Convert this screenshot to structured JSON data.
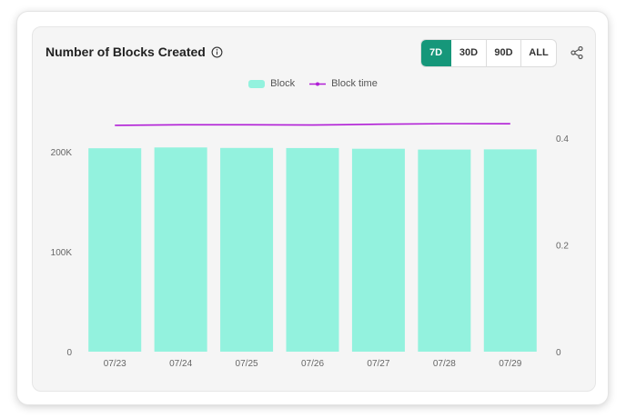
{
  "header": {
    "title": "Number of Blocks Created",
    "ranges": [
      {
        "label": "7D",
        "active": true
      },
      {
        "label": "30D",
        "active": false
      },
      {
        "label": "90D",
        "active": false
      },
      {
        "label": "ALL",
        "active": false
      }
    ]
  },
  "icons": {
    "info": "info-icon",
    "share": "share-icon"
  },
  "colors": {
    "bar": "#93f2de",
    "line": "#b11ed6",
    "active_button": "#16977a"
  },
  "chart_data": {
    "type": "bar",
    "categories": [
      "07/23",
      "07/24",
      "07/25",
      "07/26",
      "07/27",
      "07/28",
      "07/29"
    ],
    "series": [
      {
        "name": "Block",
        "type": "bar",
        "axis": "left",
        "values": [
          203500,
          204300,
          203800,
          203700,
          203000,
          202200,
          202400
        ]
      },
      {
        "name": "Block time",
        "type": "line",
        "axis": "right",
        "values": [
          0.424,
          0.425,
          0.425,
          0.4245,
          0.426,
          0.427,
          0.427
        ]
      }
    ],
    "yaxis_left": {
      "ticks": [
        0,
        100000,
        200000
      ],
      "tick_labels": [
        "0",
        "100K",
        "200K"
      ],
      "ylim": [
        0,
        200000
      ]
    },
    "yaxis_right": {
      "ticks": [
        0,
        0.2,
        0.4
      ],
      "tick_labels": [
        "0",
        "0.2",
        "0.4"
      ],
      "ylim": [
        0,
        0.4
      ]
    },
    "legend": "top-center",
    "grid": false
  }
}
